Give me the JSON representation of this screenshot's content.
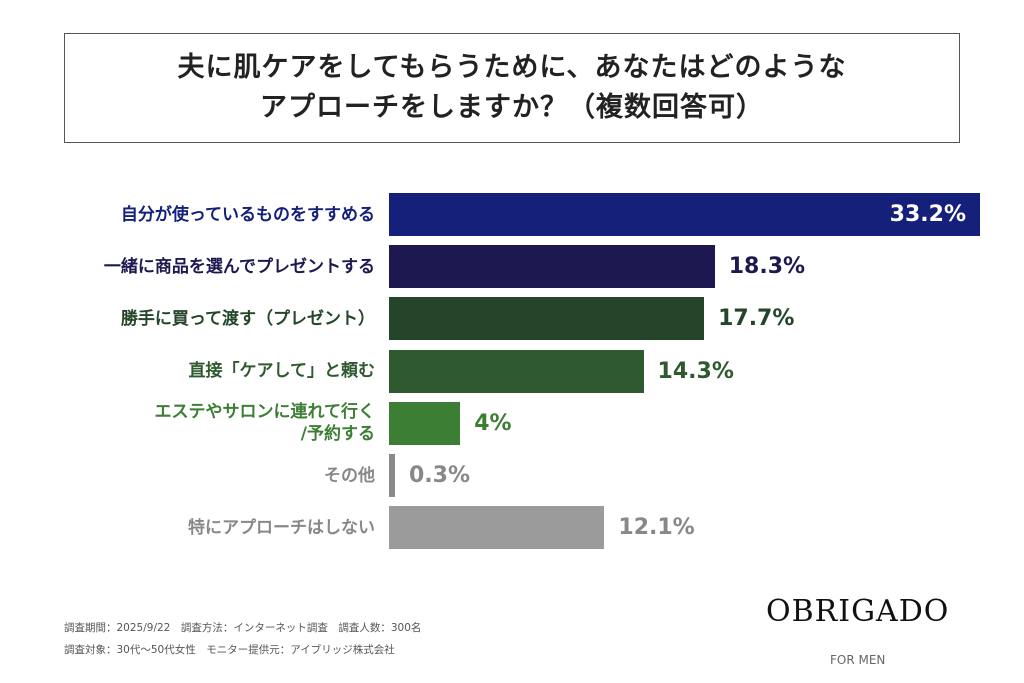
{
  "chart_data": {
    "type": "bar",
    "orientation": "horizontal",
    "title": [
      "夫に肌ケアをしてもらうために、あなたはどのような",
      "アプローチをしますか？（複数回答可）"
    ],
    "categories": [
      "自分が使っているものをすすめる",
      "一緒に商品を選んでプレゼントする",
      "勝手に買って渡す（プレゼント）",
      "直接「ケアして」と頼む",
      "エステやサロンに連れて行く/予約する",
      "その他",
      "特にアプローチはしない"
    ],
    "category_lines": [
      [
        "自分が使っているものをすすめる"
      ],
      [
        "一緒に商品を選んでプレゼントする"
      ],
      [
        "勝手に買って渡す（プレゼント）"
      ],
      [
        "直接「ケアして」と頼む"
      ],
      [
        "エステやサロンに連れて行く",
        "/予約する"
      ],
      [
        "その他"
      ],
      [
        "特にアプローチはしない"
      ]
    ],
    "values": [
      33.2,
      18.3,
      17.7,
      14.3,
      4,
      0.3,
      12.1
    ],
    "value_labels": [
      "33.2%",
      "18.3%",
      "17.7%",
      "14.3%",
      "4%",
      "0.3%",
      "12.1%"
    ],
    "colors": [
      "#142079",
      "#1d1850",
      "#24452a",
      "#2f5a30",
      "#3d7e35",
      "#8a8a8a",
      "#9b9b9b"
    ],
    "unit": "%"
  },
  "notes": [
    "調査期間：2025/9/22　調査方法：インターネット調査　調査人数：300名",
    "調査対象：30代〜50代女性　モニター提供元：アイブリッジ株式会社"
  ],
  "brand": {
    "logo": "OBRIGADO",
    "tagline": "FOR MEN"
  }
}
